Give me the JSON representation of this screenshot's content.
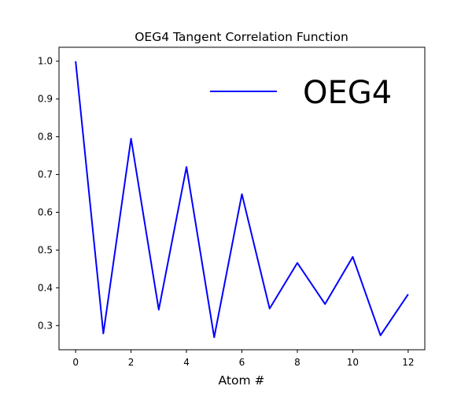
{
  "chart_data": {
    "type": "line",
    "title": "OEG4 Tangent Correlation Function",
    "xlabel": "Atom #",
    "ylabel": "",
    "xlim": [
      -0.6,
      12.6
    ],
    "ylim": [
      0.236,
      1.037
    ],
    "xticks": [
      0,
      2,
      4,
      6,
      8,
      10,
      12
    ],
    "xtick_labels": [
      "0",
      "2",
      "4",
      "6",
      "8",
      "10",
      "12"
    ],
    "yticks": [
      0.3,
      0.4,
      0.5,
      0.6,
      0.7,
      0.8,
      0.9,
      1.0
    ],
    "ytick_labels": [
      "0.3",
      "0.4",
      "0.5",
      "0.6",
      "0.7",
      "0.8",
      "0.9",
      "1.0"
    ],
    "grid": false,
    "legend_position": "top-right",
    "x": [
      0,
      1,
      2,
      3,
      4,
      5,
      6,
      7,
      8,
      9,
      10,
      11,
      12
    ],
    "series": [
      {
        "name": "OEG4",
        "color": "#0000ff",
        "values": [
          1.0,
          0.279,
          0.795,
          0.342,
          0.72,
          0.269,
          0.648,
          0.345,
          0.466,
          0.357,
          0.482,
          0.274,
          0.383
        ]
      }
    ]
  }
}
